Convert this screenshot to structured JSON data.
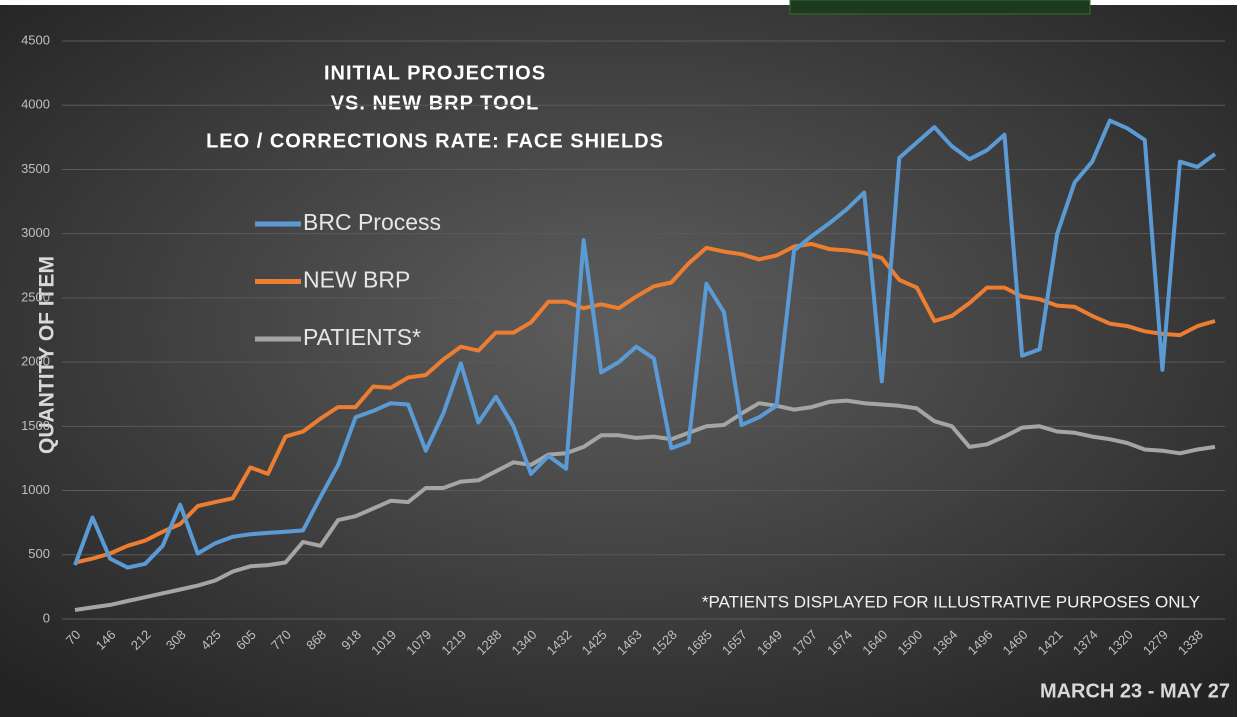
{
  "chart_data": {
    "type": "line",
    "title": [
      "INITIAL PROJECTIOS",
      "VS. NEW BRP TOOL",
      "LEO / CORRECTIONS RATE: FACE SHIELDS"
    ],
    "y_label": "QUANTITY OF ITEM",
    "annotations": [
      "*PATIENTS DISPLAYED FOR ILLUSTRATIVE PURPOSES ONLY",
      "MARCH 23 - MAY 27"
    ],
    "categories": [
      "70",
      null,
      "146",
      null,
      "212",
      null,
      "308",
      null,
      "425",
      null,
      "605",
      null,
      "770",
      null,
      "868",
      null,
      "918",
      null,
      "1019",
      null,
      "1079",
      null,
      "1219",
      null,
      "1288",
      null,
      "1340",
      null,
      "1432",
      null,
      "1425",
      null,
      "1463",
      null,
      "1528",
      null,
      "1685",
      null,
      "1657",
      null,
      "1649",
      null,
      "1707",
      null,
      "1674",
      null,
      "1640",
      null,
      "1500",
      null,
      "1364",
      null,
      "1496",
      null,
      "1460",
      null,
      "1421",
      null,
      "1374",
      null,
      "1320",
      null,
      "1279",
      null,
      "1338",
      null
    ],
    "series": [
      {
        "name": "BRC Process",
        "color": "#5b9bd5",
        "values": [
          420,
          790,
          470,
          400,
          430,
          570,
          890,
          510,
          590,
          640,
          660,
          670,
          680,
          690,
          950,
          1200,
          1570,
          1620,
          1680,
          1670,
          1310,
          1600,
          1990,
          1530,
          1730,
          1500,
          1130,
          1270,
          1170,
          2950,
          1920,
          2000,
          2120,
          2030,
          1330,
          1380,
          2610,
          2390,
          1510,
          1570,
          1660,
          2870,
          2980,
          3080,
          3190,
          3320,
          1850,
          3590,
          3710,
          3830,
          3680,
          3580,
          3650,
          3770,
          2050,
          2100,
          3000,
          3400,
          3560,
          3880,
          3820,
          3730,
          1940,
          3560,
          3520,
          3620
        ]
      },
      {
        "name": "NEW BRP",
        "color": "#ed7d31",
        "values": [
          440,
          470,
          510,
          570,
          610,
          680,
          740,
          880,
          910,
          940,
          1180,
          1130,
          1420,
          1460,
          1560,
          1650,
          1650,
          1810,
          1800,
          1880,
          1900,
          2020,
          2120,
          2090,
          2230,
          2230,
          2310,
          2470,
          2470,
          2420,
          2450,
          2420,
          2510,
          2590,
          2620,
          2770,
          2890,
          2860,
          2840,
          2800,
          2830,
          2900,
          2920,
          2880,
          2870,
          2850,
          2810,
          2640,
          2580,
          2320,
          2360,
          2460,
          2580,
          2580,
          2510,
          2490,
          2440,
          2430,
          2360,
          2300,
          2280,
          2240,
          2220,
          2210,
          2280,
          2320
        ]
      },
      {
        "name": "PATIENTS*",
        "color": "#a5a5a5",
        "values": [
          70,
          90,
          110,
          140,
          170,
          200,
          230,
          260,
          300,
          370,
          410,
          420,
          440,
          600,
          570,
          770,
          800,
          860,
          920,
          910,
          1020,
          1020,
          1070,
          1080,
          1150,
          1220,
          1200,
          1280,
          1290,
          1340,
          1430,
          1430,
          1410,
          1420,
          1400,
          1450,
          1500,
          1510,
          1600,
          1680,
          1660,
          1630,
          1650,
          1690,
          1700,
          1680,
          1670,
          1660,
          1640,
          1540,
          1500,
          1340,
          1360,
          1420,
          1490,
          1500,
          1460,
          1450,
          1420,
          1400,
          1370,
          1320,
          1310,
          1290,
          1320,
          1340
        ]
      }
    ],
    "ylim": [
      0,
      4500
    ],
    "yticks": [
      0,
      500,
      1000,
      1500,
      2000,
      2500,
      3000,
      3500,
      4000,
      4500
    ],
    "grid": true,
    "legend": "upper-left"
  }
}
